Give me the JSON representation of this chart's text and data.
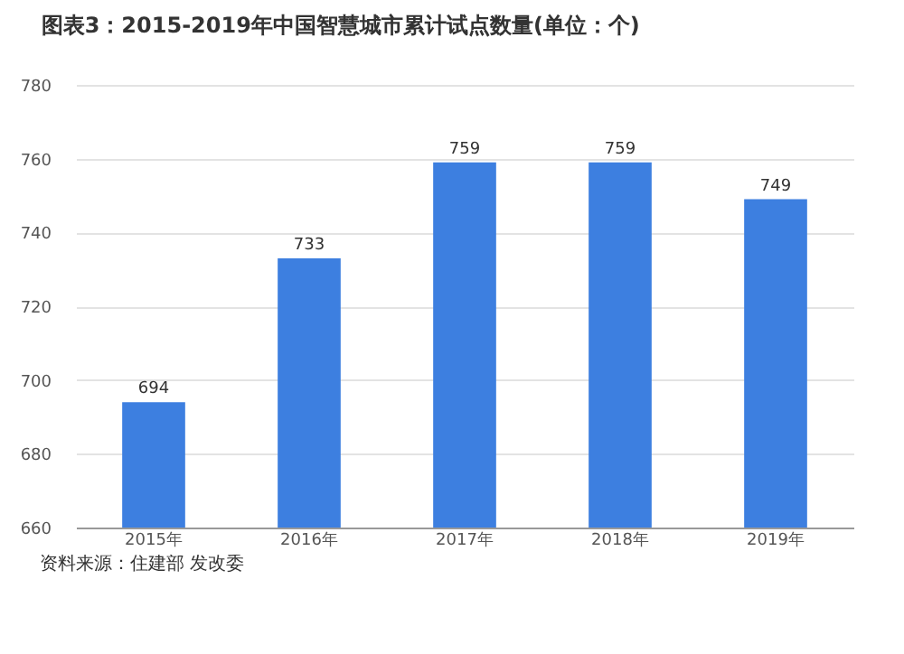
{
  "chart_data": {
    "type": "bar",
    "title": "图表3：2015-2019年中国智慧城市累计试点数量(单位：个)",
    "categories": [
      "2015年",
      "2016年",
      "2017年",
      "2018年",
      "2019年"
    ],
    "values": [
      694,
      733,
      759,
      759,
      749
    ],
    "color": "#3d7fe0",
    "ylim": [
      660,
      780
    ],
    "yticks": [
      660,
      680,
      700,
      720,
      740,
      760,
      780
    ],
    "grid": "y",
    "data_labels": true,
    "annotations": [
      "资料来源：住建部 发改委"
    ]
  }
}
